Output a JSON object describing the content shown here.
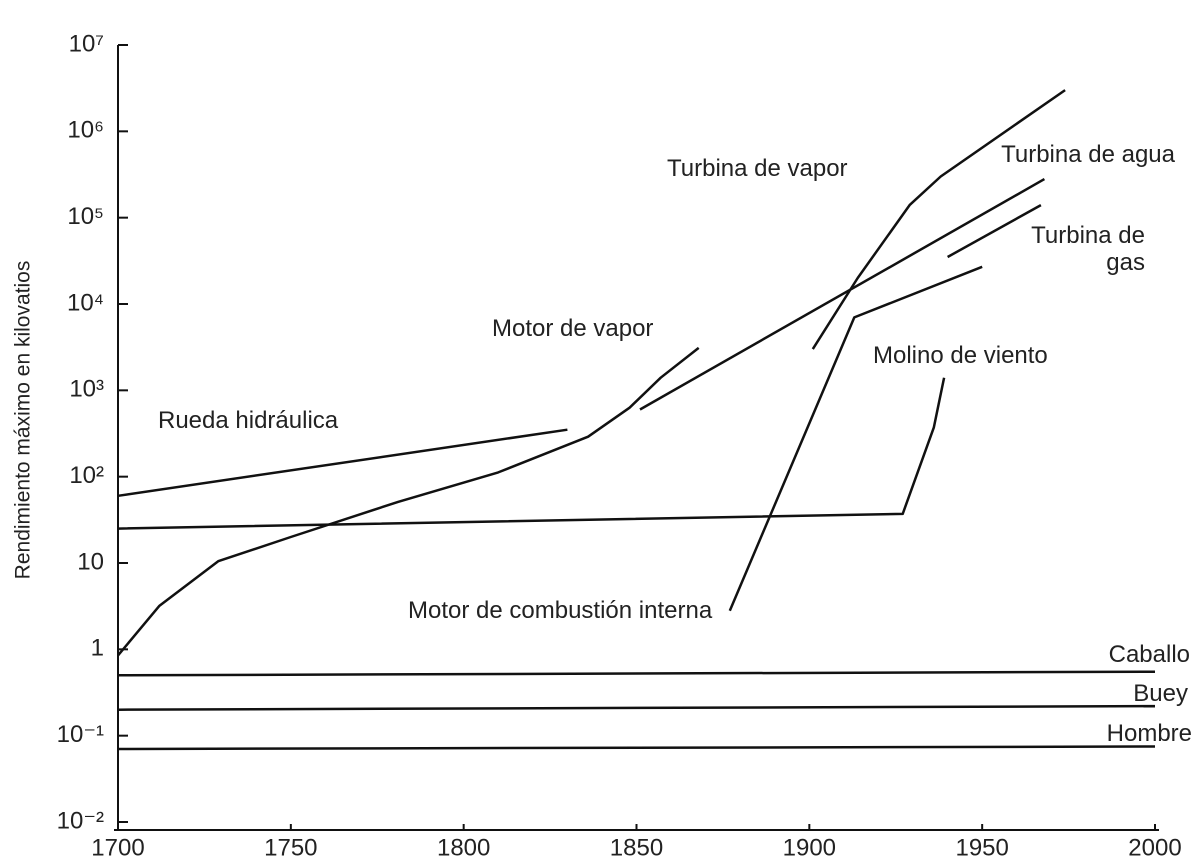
{
  "chart_data": {
    "type": "line",
    "y_label": "Rendimiento máximo en kilovatios",
    "log_y": true,
    "xlim": [
      1700,
      2000
    ],
    "xticks": [
      1700,
      1750,
      1800,
      1850,
      1900,
      1950,
      2000
    ],
    "ylim": [
      0.01,
      10000000
    ],
    "yticks": [
      {
        "value": 0.01,
        "label": "10⁻²"
      },
      {
        "value": 0.1,
        "label": "10⁻¹"
      },
      1,
      10,
      {
        "value": 100,
        "label": "10²"
      },
      {
        "value": 1000,
        "label": "10³"
      },
      {
        "value": 10000,
        "label": "10⁴"
      },
      {
        "value": 100000,
        "label": "10⁵"
      },
      {
        "value": 1000000,
        "label": "10⁶"
      },
      {
        "value": 10000000,
        "label": "10⁷"
      }
    ],
    "series": [
      {
        "name": "Rueda hidráulica",
        "color": "#111111",
        "x": [
          1700,
          1830
        ],
        "values": [
          60,
          350
        ]
      },
      {
        "name": "Motor de vapor",
        "color": "#111111",
        "x": [
          1700,
          1712,
          1729,
          1750,
          1781,
          1810,
          1836,
          1848,
          1857,
          1868
        ],
        "values": [
          0.85,
          3.2,
          10.5,
          20,
          51,
          112,
          290,
          630,
          1400,
          3100
        ]
      },
      {
        "name": "Turbina de agua",
        "color": "#111111",
        "x": [
          1851,
          1968
        ],
        "values": [
          600,
          280000
        ]
      },
      {
        "name": "Turbina de vapor",
        "color": "#111111",
        "x": [
          1901,
          1914,
          1929,
          1938,
          1974
        ],
        "values": [
          3000,
          20000,
          140000,
          300000,
          3000000
        ]
      },
      {
        "name": "Turbina de gas",
        "color": "#111111",
        "x": [
          1940,
          1967
        ],
        "values": [
          35000,
          140000
        ]
      },
      {
        "name": "Motor de combustión interna",
        "color": "#111111",
        "x": [
          1877,
          1913,
          1950
        ],
        "values": [
          2.8,
          7000,
          27000
        ]
      },
      {
        "name": "Molino de viento",
        "color": "#111111",
        "x": [
          1700,
          1927,
          1936,
          1939
        ],
        "values": [
          25,
          37,
          370,
          1400
        ]
      },
      {
        "name": "Caballo",
        "color": "#111111",
        "x": [
          1700,
          2000
        ],
        "values": [
          0.5,
          0.55
        ]
      },
      {
        "name": "Buey",
        "color": "#111111",
        "x": [
          1700,
          2000
        ],
        "values": [
          0.2,
          0.22
        ]
      },
      {
        "name": "Hombre",
        "color": "#111111",
        "x": [
          1700,
          2000
        ],
        "values": [
          0.07,
          0.075
        ]
      }
    ]
  }
}
